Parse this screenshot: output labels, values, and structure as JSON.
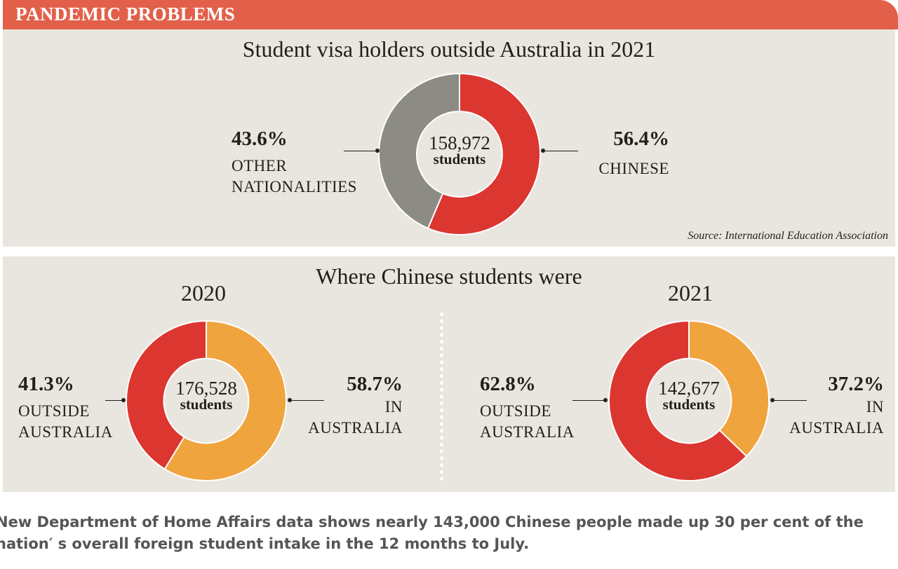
{
  "banner_title": "PANDEMIC PROBLEMS",
  "colors": {
    "banner": "#e2604a",
    "red": "#dc3630",
    "gray": "#8c8b84",
    "orange": "#f0a43e",
    "panel_bg": "#e8e6de"
  },
  "top": {
    "title": "Student visa holders outside Australia in 2021",
    "total": "158,972",
    "total_label": "students",
    "left_pct": "43.6%",
    "left_label_1": "OTHER",
    "left_label_2": "NATIONALITIES",
    "right_pct": "56.4%",
    "right_label": "CHINESE",
    "source": "Source: International Education Association"
  },
  "bottom": {
    "title": "Where Chinese students were",
    "left": {
      "year": "2020",
      "total": "176,528",
      "total_label": "students",
      "outside_pct": "41.3%",
      "outside_label_1": "OUTSIDE",
      "outside_label_2": "AUSTRALIA",
      "in_pct": "58.7%",
      "in_label_1": "IN",
      "in_label_2": "AUSTRALIA"
    },
    "right": {
      "year": "2021",
      "total": "142,677",
      "total_label": "students",
      "outside_pct": "62.8%",
      "outside_label_1": "OUTSIDE",
      "outside_label_2": "AUSTRALIA",
      "in_pct": "37.2%",
      "in_label_1": "IN",
      "in_label_2": "AUSTRALIA"
    }
  },
  "caption": {
    "line1": "New Department of Home Affairs data shows nearly 143,000 Chinese people made up 30 per cent of the",
    "line2": "nation′ s overall foreign student intake in the 12 months to July."
  },
  "chart_data": [
    {
      "type": "pie",
      "title": "Student visa holders outside Australia in 2021",
      "center_label": "158,972 students",
      "categories": [
        "CHINESE",
        "OTHER NATIONALITIES"
      ],
      "values": [
        56.4,
        43.6
      ],
      "colors": [
        "#dc3630",
        "#8c8b84"
      ]
    },
    {
      "type": "pie",
      "title": "2020",
      "center_label": "176,528 students",
      "categories": [
        "IN AUSTRALIA",
        "OUTSIDE AUSTRALIA"
      ],
      "values": [
        58.7,
        41.3
      ],
      "colors": [
        "#f0a43e",
        "#dc3630"
      ]
    },
    {
      "type": "pie",
      "title": "2021",
      "center_label": "142,677 students",
      "categories": [
        "IN AUSTRALIA",
        "OUTSIDE AUSTRALIA"
      ],
      "values": [
        37.2,
        62.8
      ],
      "colors": [
        "#f0a43e",
        "#dc3630"
      ]
    }
  ]
}
